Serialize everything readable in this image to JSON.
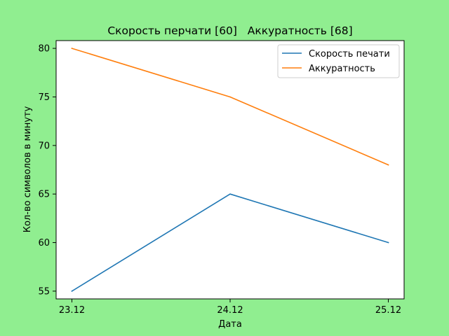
{
  "chart_data": {
    "type": "line",
    "title": "Скорость перчати [60]   Аккуратность [68]",
    "xlabel": "Дата",
    "ylabel": "Кол-во символов в минуту",
    "categories": [
      "23.12",
      "24.12",
      "25.12"
    ],
    "ylim": [
      54.2,
      80.8
    ],
    "yticks": [
      55,
      60,
      65,
      70,
      75,
      80
    ],
    "grid": false,
    "legend_position": "top-right",
    "series": [
      {
        "name": "Скорость печати",
        "values": [
          55,
          65,
          60
        ],
        "color": "#1f77b4"
      },
      {
        "name": "Аккуратность",
        "values": [
          80,
          75,
          68
        ],
        "color": "#ff7f0e"
      }
    ]
  },
  "colors": {
    "figure_background": "#90ee90",
    "plot_background": "#ffffff"
  }
}
